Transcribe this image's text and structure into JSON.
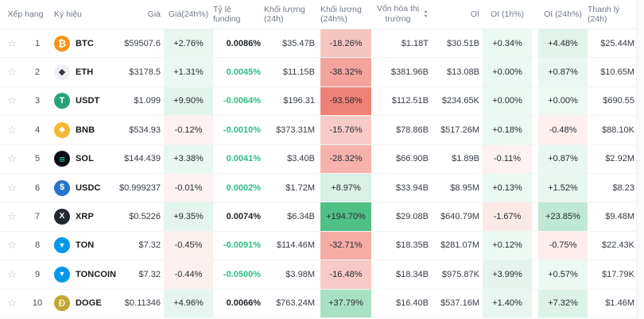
{
  "ui": {
    "star": "☆",
    "sort_up": "▲",
    "sort_down": "▼"
  },
  "table": {
    "columns": {
      "rank": "Xếp hạng",
      "symbol": "Ký hiệu",
      "price": "Giá",
      "chg": "Giá(24h%)",
      "funding": "Tỷ lệ funding",
      "vol": "Khối lượng (24h)",
      "volPct": "Khối lượng (24h%)",
      "mcap": "Vốn hóa thị trường",
      "oi": "OI",
      "oi1h": "OI (1h%)",
      "oi24h": "OI (24h%)",
      "liq": "Thanh lý (24h)"
    },
    "rows": [
      {
        "rank": "1",
        "name": "BTC",
        "icon": {
          "bg": "#f7931a",
          "glyph": "₿",
          "color": "#ffffff",
          "size": "12px"
        },
        "price": "$59507.6",
        "chg": {
          "t": "+2.76%",
          "bg": "#e9f7f0"
        },
        "funding": {
          "t": "0.0086%",
          "color": "#1e2329"
        },
        "vol": "$35.47B",
        "volPct": {
          "t": "-18.26%",
          "bg": "#f7c5c0"
        },
        "mcap": "$1.18T",
        "oi": "$30.51B",
        "oi1h": {
          "t": "+0.34%",
          "bg": "#ecf8f2"
        },
        "oi24h": {
          "t": "+4.48%",
          "bg": "#e1f4ea"
        },
        "liq": "$25.44M"
      },
      {
        "rank": "2",
        "name": "ETH",
        "icon": {
          "bg": "#eef0f4",
          "glyph": "◆",
          "color": "#32363f",
          "size": "11px"
        },
        "price": "$3178.5",
        "chg": {
          "t": "+1.31%",
          "bg": "#ebf8f2"
        },
        "funding": {
          "t": "0.0045%",
          "color": "#2ebd85"
        },
        "vol": "$11.15B",
        "volPct": {
          "t": "-38.32%",
          "bg": "#f3a59d"
        },
        "mcap": "$381.96B",
        "oi": "$13.08B",
        "oi1h": {
          "t": "+0.00%",
          "bg": "#ecf8f2"
        },
        "oi24h": {
          "t": "+0.87%",
          "bg": "#eaf7f1"
        },
        "liq": "$10.65M"
      },
      {
        "rank": "3",
        "name": "USDT",
        "icon": {
          "bg": "#26a17b",
          "glyph": "T",
          "color": "#ffffff",
          "size": "11px"
        },
        "price": "$1.099",
        "chg": {
          "t": "+9.90%",
          "bg": "#e2f5ec"
        },
        "funding": {
          "t": "-0.0064%",
          "color": "#2ebd85"
        },
        "vol": "$196.31",
        "volPct": {
          "t": "-93.58%",
          "bg": "#ef8176"
        },
        "mcap": "$112.51B",
        "oi": "$234.65K",
        "oi1h": {
          "t": "+0.00%",
          "bg": "#ecf8f2"
        },
        "oi24h": {
          "t": "+0.00%",
          "bg": "#eef9f4"
        },
        "liq": "$690.55"
      },
      {
        "rank": "4",
        "name": "BNB",
        "icon": {
          "bg": "#f3ba2f",
          "glyph": "◆",
          "color": "#ffffff",
          "size": "10px"
        },
        "price": "$534.93",
        "chg": {
          "t": "-0.12%",
          "bg": "#fdf2f1"
        },
        "funding": {
          "t": "-0.0010%",
          "color": "#2ebd85"
        },
        "vol": "$373.31M",
        "volPct": {
          "t": "-15.76%",
          "bg": "#f8cbc6"
        },
        "mcap": "$78.86B",
        "oi": "$517.26M",
        "oi1h": {
          "t": "+0.18%",
          "bg": "#ecf8f2"
        },
        "oi24h": {
          "t": "-0.48%",
          "bg": "#fdf0ee"
        },
        "liq": "$88.10K"
      },
      {
        "rank": "5",
        "name": "SOL",
        "icon": {
          "bg": "#0b0d12",
          "glyph": "≡",
          "color": "#1ce8a8",
          "size": "13px"
        },
        "price": "$144.439",
        "chg": {
          "t": "+3.38%",
          "bg": "#e8f7ef"
        },
        "funding": {
          "t": "0.0041%",
          "color": "#2ebd85"
        },
        "vol": "$3.40B",
        "volPct": {
          "t": "-28.32%",
          "bg": "#f5b3ab"
        },
        "mcap": "$66.90B",
        "oi": "$1.89B",
        "oi1h": {
          "t": "-0.11%",
          "bg": "#fdf2f1"
        },
        "oi24h": {
          "t": "+0.87%",
          "bg": "#eaf7f1"
        },
        "liq": "$2.92M"
      },
      {
        "rank": "6",
        "name": "USDC",
        "icon": {
          "bg": "#2775ca",
          "glyph": "$",
          "color": "#ffffff",
          "size": "11px"
        },
        "price": "$0.999237",
        "chg": {
          "t": "-0.01%",
          "bg": "#fdf2f1"
        },
        "funding": {
          "t": "0.0002%",
          "color": "#2ebd85"
        },
        "vol": "$1.72M",
        "volPct": {
          "t": "+8.97%",
          "bg": "#d9f1e5"
        },
        "mcap": "$33.94B",
        "oi": "$8.95M",
        "oi1h": {
          "t": "+0.13%",
          "bg": "#ecf8f2"
        },
        "oi24h": {
          "t": "+1.52%",
          "bg": "#e7f6ee"
        },
        "liq": "$8.23"
      },
      {
        "rank": "7",
        "name": "XRP",
        "icon": {
          "bg": "#23292f",
          "glyph": "X",
          "color": "#ffffff",
          "size": "10px"
        },
        "price": "$0.5226",
        "chg": {
          "t": "+9.35%",
          "bg": "#e3f5ec"
        },
        "funding": {
          "t": "0.0074%",
          "color": "#1e2329"
        },
        "vol": "$6.34B",
        "volPct": {
          "t": "+194.70%",
          "bg": "#50c186"
        },
        "mcap": "$29.08B",
        "oi": "$640.79M",
        "oi1h": {
          "t": "-1.67%",
          "bg": "#fbe9e7"
        },
        "oi24h": {
          "t": "+23.85%",
          "bg": "#bfe9d4"
        },
        "liq": "$9.48M"
      },
      {
        "rank": "8",
        "name": "TON",
        "icon": {
          "bg": "#0098ea",
          "glyph": "▼",
          "color": "#ffffff",
          "size": "9px"
        },
        "price": "$7.32",
        "chg": {
          "t": "-0.45%",
          "bg": "#fcf0ef"
        },
        "funding": {
          "t": "-0.0091%",
          "color": "#2ebd85"
        },
        "vol": "$114.46M",
        "volPct": {
          "t": "-32.71%",
          "bg": "#f4aca4"
        },
        "mcap": "$18.35B",
        "oi": "$281.07M",
        "oi1h": {
          "t": "+0.12%",
          "bg": "#ecf8f2"
        },
        "oi24h": {
          "t": "-0.75%",
          "bg": "#fceeec"
        },
        "liq": "$22.43K"
      },
      {
        "rank": "9",
        "name": "TONCOIN",
        "icon": {
          "bg": "#0098ea",
          "glyph": "▼",
          "color": "#ffffff",
          "size": "9px"
        },
        "price": "$7.32",
        "chg": {
          "t": "-0.44%",
          "bg": "#fcf0ef"
        },
        "funding": {
          "t": "-0.0500%",
          "color": "#2ebd85"
        },
        "vol": "$3.98M",
        "volPct": {
          "t": "-16.48%",
          "bg": "#f8cac5"
        },
        "mcap": "$18.34B",
        "oi": "$975.87K",
        "oi1h": {
          "t": "+3.99%",
          "bg": "#e2f4ec"
        },
        "oi24h": {
          "t": "+0.57%",
          "bg": "#ecf8f2"
        },
        "liq": "$17.79K"
      },
      {
        "rank": "10",
        "name": "DOGE",
        "icon": {
          "bg": "#c2a633",
          "glyph": "Ð",
          "color": "#f7ecc0",
          "size": "12px"
        },
        "price": "$0.11346",
        "chg": {
          "t": "+4.96%",
          "bg": "#e6f6ee"
        },
        "funding": {
          "t": "0.0066%",
          "color": "#1e2329"
        },
        "vol": "$763.24M",
        "volPct": {
          "t": "+37.79%",
          "bg": "#a9e1c5"
        },
        "mcap": "$16.40B",
        "oi": "$537.16M",
        "oi1h": {
          "t": "+1.40%",
          "bg": "#e8f6ef"
        },
        "oi24h": {
          "t": "+7.32%",
          "bg": "#def3e8"
        },
        "liq": "$1.46M"
      }
    ]
  }
}
